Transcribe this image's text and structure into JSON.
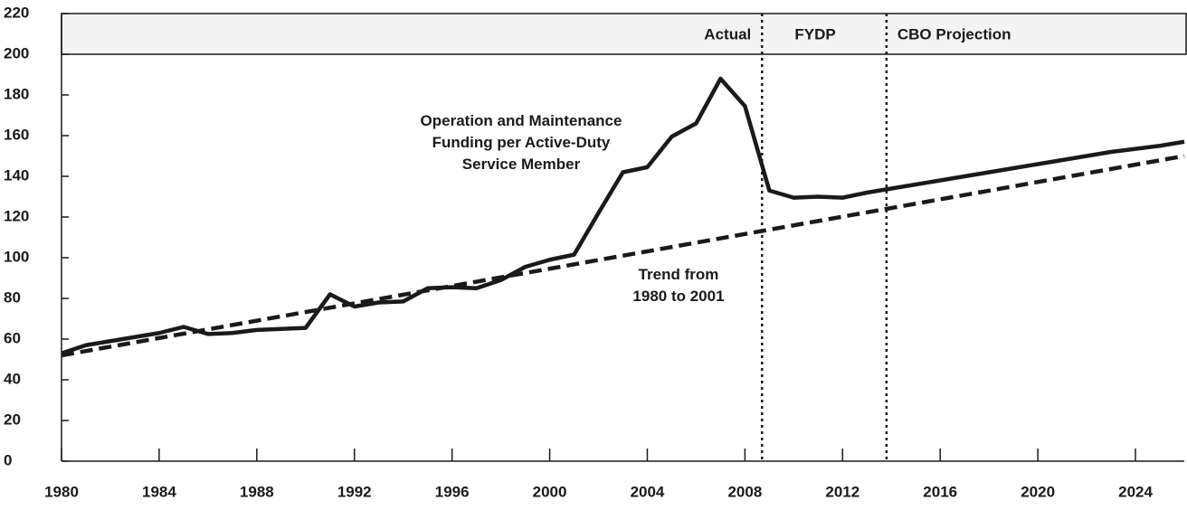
{
  "chart_data": {
    "type": "line",
    "xlim": [
      1980,
      2026
    ],
    "xticks": [
      1980,
      1984,
      1988,
      1992,
      1996,
      2000,
      2004,
      2008,
      2012,
      2016,
      2020,
      2024
    ],
    "ylim": [
      0,
      220
    ],
    "yticks": [
      0,
      20,
      40,
      60,
      80,
      100,
      120,
      140,
      160,
      180,
      200,
      220
    ],
    "series": [
      {
        "name": "Operation and Maintenance Funding per Active-Duty Service Member",
        "color": "#1a1a1a",
        "style": "solid",
        "x": [
          1980,
          1981,
          1982,
          1983,
          1984,
          1985,
          1986,
          1987,
          1988,
          1989,
          1990,
          1991,
          1992,
          1993,
          1994,
          1995,
          1996,
          1997,
          1998,
          1999,
          2000,
          2001,
          2002,
          2003,
          2004,
          2005,
          2006,
          2007,
          2008,
          2009,
          2010,
          2011,
          2012,
          2013,
          2014,
          2015,
          2016,
          2017,
          2018,
          2019,
          2020,
          2021,
          2022,
          2023,
          2024,
          2025,
          2026
        ],
        "values": [
          53,
          57,
          59,
          61,
          63,
          66,
          62.5,
          63,
          64.5,
          65,
          65.5,
          82,
          76,
          78,
          78.5,
          85,
          85.5,
          85,
          89,
          95.5,
          99,
          101.5,
          122,
          142,
          144.5,
          159.5,
          166,
          188,
          174.5,
          133,
          129.5,
          130,
          129.5,
          132,
          134,
          136,
          138,
          140,
          142,
          144,
          146,
          148,
          150,
          152,
          153.5,
          155,
          157
        ]
      },
      {
        "name": "Trend from 1980 to 2001",
        "color": "#1a1a1a",
        "style": "dashed",
        "x": [
          1980,
          2026
        ],
        "values": [
          52,
          150
        ]
      }
    ],
    "dividers": [
      2008.7,
      2013.8
    ],
    "periods": [
      "Actual",
      "FYDP",
      "CBO Projection"
    ]
  }
}
